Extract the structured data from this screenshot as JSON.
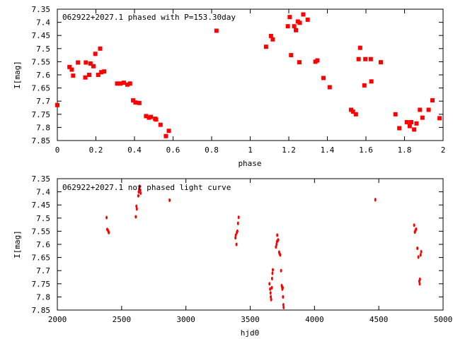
{
  "colors": {
    "background": "#ffffff",
    "axis": "#000000",
    "marker": "#ff0000"
  },
  "chart_data": [
    {
      "type": "scatter",
      "title": "062922+2027.1 phased with P=153.30day",
      "xlabel": "phase",
      "ylabel": "I[mag]",
      "xlim": [
        0,
        2
      ],
      "ylim": [
        7.85,
        7.35
      ],
      "y_inverted": true,
      "grid": false,
      "marker": "square",
      "xticks": [
        "0",
        "0.2",
        "0.4",
        "0.6",
        "0.8",
        "1",
        "1.2",
        "1.4",
        "1.6",
        "1.8",
        "2"
      ],
      "yticks": [
        "7.35",
        "7.4",
        "7.45",
        "7.5",
        "7.55",
        "7.6",
        "7.65",
        "7.7",
        "7.75",
        "7.8",
        "7.85"
      ],
      "series": [
        {
          "points": [
            [
              0.0,
              7.715
            ],
            [
              0.063,
              7.57
            ],
            [
              0.075,
              7.58
            ],
            [
              0.082,
              7.603
            ],
            [
              0.107,
              7.553
            ],
            [
              0.145,
              7.61
            ],
            [
              0.148,
              7.553
            ],
            [
              0.165,
              7.6
            ],
            [
              0.172,
              7.557
            ],
            [
              0.187,
              7.567
            ],
            [
              0.197,
              7.52
            ],
            [
              0.212,
              7.6
            ],
            [
              0.222,
              7.5
            ],
            [
              0.228,
              7.59
            ],
            [
              0.243,
              7.587
            ],
            [
              0.31,
              7.633
            ],
            [
              0.327,
              7.633
            ],
            [
              0.345,
              7.63
            ],
            [
              0.363,
              7.637
            ],
            [
              0.377,
              7.633
            ],
            [
              0.393,
              7.697
            ],
            [
              0.405,
              7.705
            ],
            [
              0.425,
              7.707
            ],
            [
              0.46,
              7.757
            ],
            [
              0.475,
              7.763
            ],
            [
              0.485,
              7.76
            ],
            [
              0.507,
              7.767
            ],
            [
              0.512,
              7.77
            ],
            [
              0.535,
              7.79
            ],
            [
              0.563,
              7.833
            ],
            [
              0.578,
              7.813
            ],
            [
              0.825,
              7.432
            ],
            [
              1.082,
              7.493
            ],
            [
              1.108,
              7.452
            ],
            [
              1.117,
              7.465
            ],
            [
              1.195,
              7.415
            ],
            [
              1.205,
              7.38
            ],
            [
              1.212,
              7.525
            ],
            [
              1.228,
              7.415
            ],
            [
              1.237,
              7.43
            ],
            [
              1.247,
              7.397
            ],
            [
              1.257,
              7.402
            ],
            [
              1.255,
              7.552
            ],
            [
              1.275,
              7.37
            ],
            [
              1.298,
              7.39
            ],
            [
              1.338,
              7.55
            ],
            [
              1.348,
              7.545
            ],
            [
              1.38,
              7.612
            ],
            [
              1.412,
              7.647
            ],
            [
              1.523,
              7.733
            ],
            [
              1.533,
              7.74
            ],
            [
              1.548,
              7.75
            ],
            [
              1.562,
              7.54
            ],
            [
              1.57,
              7.497
            ],
            [
              1.592,
              7.64
            ],
            [
              1.597,
              7.54
            ],
            [
              1.625,
              7.54
            ],
            [
              1.628,
              7.625
            ],
            [
              1.677,
              7.552
            ],
            [
              1.753,
              7.75
            ],
            [
              1.773,
              7.803
            ],
            [
              1.812,
              7.78
            ],
            [
              1.827,
              7.795
            ],
            [
              1.835,
              7.78
            ],
            [
              1.85,
              7.808
            ],
            [
              1.862,
              7.785
            ],
            [
              1.88,
              7.733
            ],
            [
              1.893,
              7.763
            ],
            [
              1.925,
              7.733
            ],
            [
              1.945,
              7.697
            ],
            [
              1.982,
              7.765
            ]
          ]
        }
      ]
    },
    {
      "type": "scatter",
      "title": "062922+2027.1 not phased light curve",
      "xlabel": "hjd0",
      "ylabel": "I[mag]",
      "xlim": [
        2000,
        5000
      ],
      "ylim": [
        7.85,
        7.35
      ],
      "y_inverted": true,
      "grid": false,
      "marker": "dot",
      "xticks": [
        "2000",
        "2500",
        "3000",
        "3500",
        "4000",
        "4500",
        "5000"
      ],
      "yticks": [
        "7.35",
        "7.4",
        "7.45",
        "7.5",
        "7.55",
        "7.6",
        "7.65",
        "7.7",
        "7.75",
        "7.8",
        "7.85"
      ],
      "series": [
        {
          "points": [
            [
              2383,
              7.498
            ],
            [
              2388,
              7.543
            ],
            [
              2395,
              7.548
            ],
            [
              2400,
              7.555
            ],
            [
              2610,
              7.495
            ],
            [
              2615,
              7.455
            ],
            [
              2618,
              7.465
            ],
            [
              2630,
              7.415
            ],
            [
              2633,
              7.4
            ],
            [
              2636,
              7.39
            ],
            [
              2638,
              7.385
            ],
            [
              2642,
              7.38
            ],
            [
              2645,
              7.395
            ],
            [
              2648,
              7.405
            ],
            [
              2873,
              7.432
            ],
            [
              3385,
              7.575
            ],
            [
              3388,
              7.565
            ],
            [
              3393,
              7.6
            ],
            [
              3396,
              7.555
            ],
            [
              3400,
              7.55
            ],
            [
              3405,
              7.52
            ],
            [
              3410,
              7.497
            ],
            [
              3650,
              7.75
            ],
            [
              3655,
              7.77
            ],
            [
              3658,
              7.785
            ],
            [
              3660,
              7.8
            ],
            [
              3663,
              7.81
            ],
            [
              3668,
              7.765
            ],
            [
              3670,
              7.73
            ],
            [
              3673,
              7.71
            ],
            [
              3676,
              7.697
            ],
            [
              3700,
              7.61
            ],
            [
              3705,
              7.6
            ],
            [
              3708,
              7.59
            ],
            [
              3710,
              7.565
            ],
            [
              3713,
              7.585
            ],
            [
              3718,
              7.583
            ],
            [
              3725,
              7.63
            ],
            [
              3728,
              7.635
            ],
            [
              3733,
              7.64
            ],
            [
              3740,
              7.7
            ],
            [
              3745,
              7.757
            ],
            [
              3748,
              7.763
            ],
            [
              3750,
              7.77
            ],
            [
              3753,
              7.765
            ],
            [
              3755,
              7.8
            ],
            [
              3758,
              7.83
            ],
            [
              3760,
              7.84
            ],
            [
              4473,
              7.43
            ],
            [
              4775,
              7.527
            ],
            [
              4780,
              7.553
            ],
            [
              4785,
              7.548
            ],
            [
              4790,
              7.542
            ],
            [
              4800,
              7.615
            ],
            [
              4808,
              7.648
            ],
            [
              4815,
              7.74
            ],
            [
              4818,
              7.75
            ],
            [
              4820,
              7.733
            ],
            [
              4825,
              7.64
            ],
            [
              4830,
              7.628
            ]
          ]
        }
      ]
    }
  ]
}
